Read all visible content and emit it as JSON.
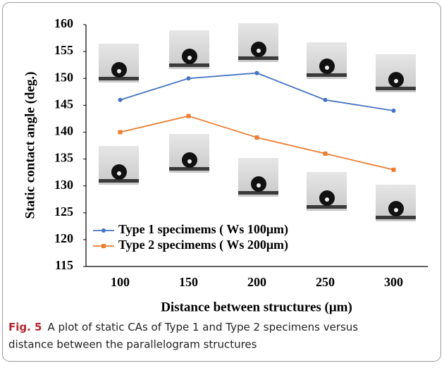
{
  "chart_data": {
    "type": "line",
    "categories": [
      "100",
      "150",
      "200",
      "250",
      "300"
    ],
    "series": [
      {
        "name": "Type 1 specimems ( Ws 100μm)",
        "color": "#4472c4",
        "marker": "circle",
        "values": [
          146,
          150,
          151,
          146,
          144
        ]
      },
      {
        "name": "Type 2 specimems ( Ws 200μm)",
        "color": "#ed7d31",
        "marker": "square",
        "values": [
          140,
          143,
          139,
          136,
          133
        ]
      }
    ],
    "ylim": [
      115,
      160
    ],
    "yticks": [
      115,
      120,
      125,
      130,
      135,
      140,
      145,
      150,
      155,
      160
    ],
    "ylabel": "Static contact angle (deg.)",
    "xlabel": "Distance between structures (μm)",
    "grid": false,
    "caption": {
      "label": "Fig. 5",
      "text": "A plot of static CAs of Type 1 and Type 2 specimens versus",
      "text2": "distance between the parallelogram structures"
    }
  }
}
